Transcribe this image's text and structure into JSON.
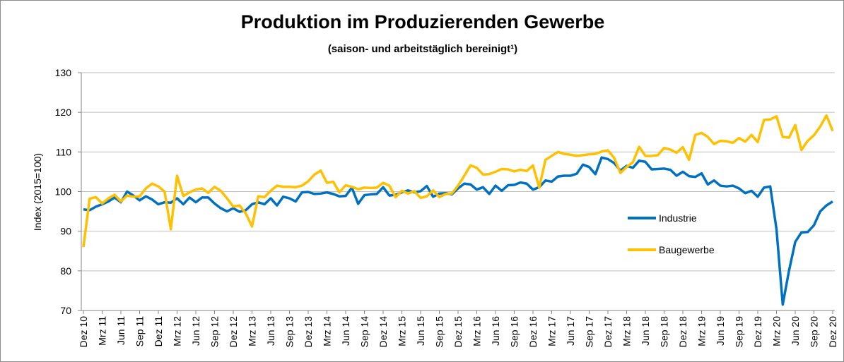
{
  "chart_data": {
    "type": "line",
    "title": "Produktion im Produzierenden Gewerbe",
    "subtitle": "(saison- und arbeitstäglich bereinigt¹)",
    "y_label": "Index (2015=100)",
    "categories": [
      "Dez 10",
      null,
      null,
      "Mrz 11",
      null,
      null,
      "Jun 11",
      null,
      null,
      "Sep 11",
      null,
      null,
      "Dez 11",
      null,
      null,
      "Mrz 12",
      null,
      null,
      "Jun 12",
      null,
      null,
      "Sep 12",
      null,
      null,
      "Dez 12",
      null,
      null,
      "Mrz 13",
      null,
      null,
      "Jun 13",
      null,
      null,
      "Sep 13",
      null,
      null,
      "Dez 13",
      null,
      null,
      "Mrz 14",
      null,
      null,
      "Jun 14",
      null,
      null,
      "Sep 14",
      null,
      null,
      "Dez 14",
      null,
      null,
      "Mrz 15",
      null,
      null,
      "Jun 15",
      null,
      null,
      "Sep 15",
      null,
      null,
      "Dez 15",
      null,
      null,
      "Mrz 16",
      null,
      null,
      "Jun 16",
      null,
      null,
      "Sep 16",
      null,
      null,
      "Dez 16",
      null,
      null,
      "Mrz 17",
      null,
      null,
      "Jun 17",
      null,
      null,
      "Sep 17",
      null,
      null,
      "Dez 17",
      null,
      null,
      "Mrz 18",
      null,
      null,
      "Jun 18",
      null,
      null,
      "Sep 18",
      null,
      null,
      "Dez 18",
      null,
      null,
      "Mrz 19",
      null,
      null,
      "Jun 19",
      null,
      null,
      "Sep 19",
      null,
      null,
      "Dez 19",
      null,
      null,
      "Mrz 20",
      null,
      null,
      "Jun 20",
      null,
      null,
      "Sep 20",
      null,
      null,
      "Dez 20"
    ],
    "series": [
      {
        "name": "Industrie",
        "color": "#0070c0",
        "values": [
          95.5,
          95.3,
          96.2,
          96.8,
          97.5,
          98.5,
          97.3,
          100,
          99,
          97.8,
          98.8,
          98,
          96.8,
          97.3,
          97.2,
          98.3,
          96.8,
          98.5,
          97.3,
          98.5,
          98.5,
          97,
          95.8,
          95,
          95.8,
          94.9,
          95.3,
          96.8,
          97.3,
          96.8,
          98.3,
          96.5,
          98.7,
          98.3,
          97.5,
          99.8,
          99.9,
          99.4,
          99.5,
          99.8,
          99.4,
          98.8,
          98.9,
          101,
          96.9,
          99.1,
          99.3,
          99.4,
          101.1,
          99,
          99.2,
          99.8,
          100.3,
          99.8,
          100.1,
          101.4,
          98.7,
          99.5,
          99.6,
          99.3,
          100.8,
          102,
          101.8,
          100.5,
          101.1,
          99.4,
          101.5,
          100.2,
          101.6,
          101.7,
          102.3,
          102,
          100.5,
          101.1,
          102.8,
          102.5,
          103.8,
          104,
          104,
          104.5,
          106.8,
          106.2,
          104.4,
          108.6,
          108.2,
          107.2,
          105.3,
          106.5,
          106,
          107.8,
          107.5,
          105.6,
          105.7,
          105.8,
          105.5,
          104,
          105,
          103.9,
          103.7,
          104.6,
          101.8,
          102.8,
          101.5,
          101.3,
          101.5,
          100.8,
          99.6,
          100.2,
          98.7,
          101,
          101.3,
          90.5,
          71.5,
          80,
          87.3,
          89.7,
          89.8,
          91.5,
          95,
          96.5,
          97.5
        ]
      },
      {
        "name": "Baugewerbe",
        "color": "#ffc000",
        "values": [
          86,
          98.2,
          98.6,
          97,
          98.3,
          99.2,
          97.5,
          99,
          98.7,
          98.8,
          100.8,
          102,
          101.3,
          100,
          90.5,
          104,
          98.9,
          99.8,
          100.5,
          100.8,
          99.7,
          101.2,
          100.2,
          98.3,
          96.2,
          96.5,
          94.5,
          91.2,
          98.8,
          98.6,
          100.2,
          101.5,
          101.2,
          101.2,
          101.1,
          101.5,
          102.6,
          104.3,
          105.3,
          102.2,
          102.5,
          99.8,
          101.6,
          101.2,
          100.6,
          101,
          100.9,
          101,
          102.2,
          101.5,
          98.6,
          100.2,
          99.5,
          100.1,
          98.4,
          98.8,
          100.3,
          98.6,
          99.4,
          99.5,
          101.5,
          104,
          106.6,
          106,
          104.3,
          104.4,
          105,
          105.7,
          105.6,
          105.1,
          105.5,
          105.2,
          106.6,
          101,
          108,
          109,
          110,
          109.5,
          109.3,
          109,
          109.2,
          109.4,
          109.5,
          110.1,
          110.4,
          108.5,
          104.7,
          106.2,
          107.4,
          111.3,
          109,
          109,
          109.2,
          111,
          110.6,
          109.8,
          111.2,
          108,
          114.3,
          114.8,
          113.8,
          112,
          112.8,
          112.7,
          112.3,
          113.5,
          112.6,
          114.3,
          112.5,
          118.1,
          118.2,
          119,
          113.8,
          113.6,
          116.8,
          110.5,
          112.8,
          114.2,
          116.4,
          119.2,
          115.3
        ]
      }
    ],
    "ylim": [
      70,
      130
    ],
    "yticks": [
      70,
      80,
      90,
      100,
      110,
      120,
      130
    ],
    "grid": true,
    "legend": "right"
  }
}
